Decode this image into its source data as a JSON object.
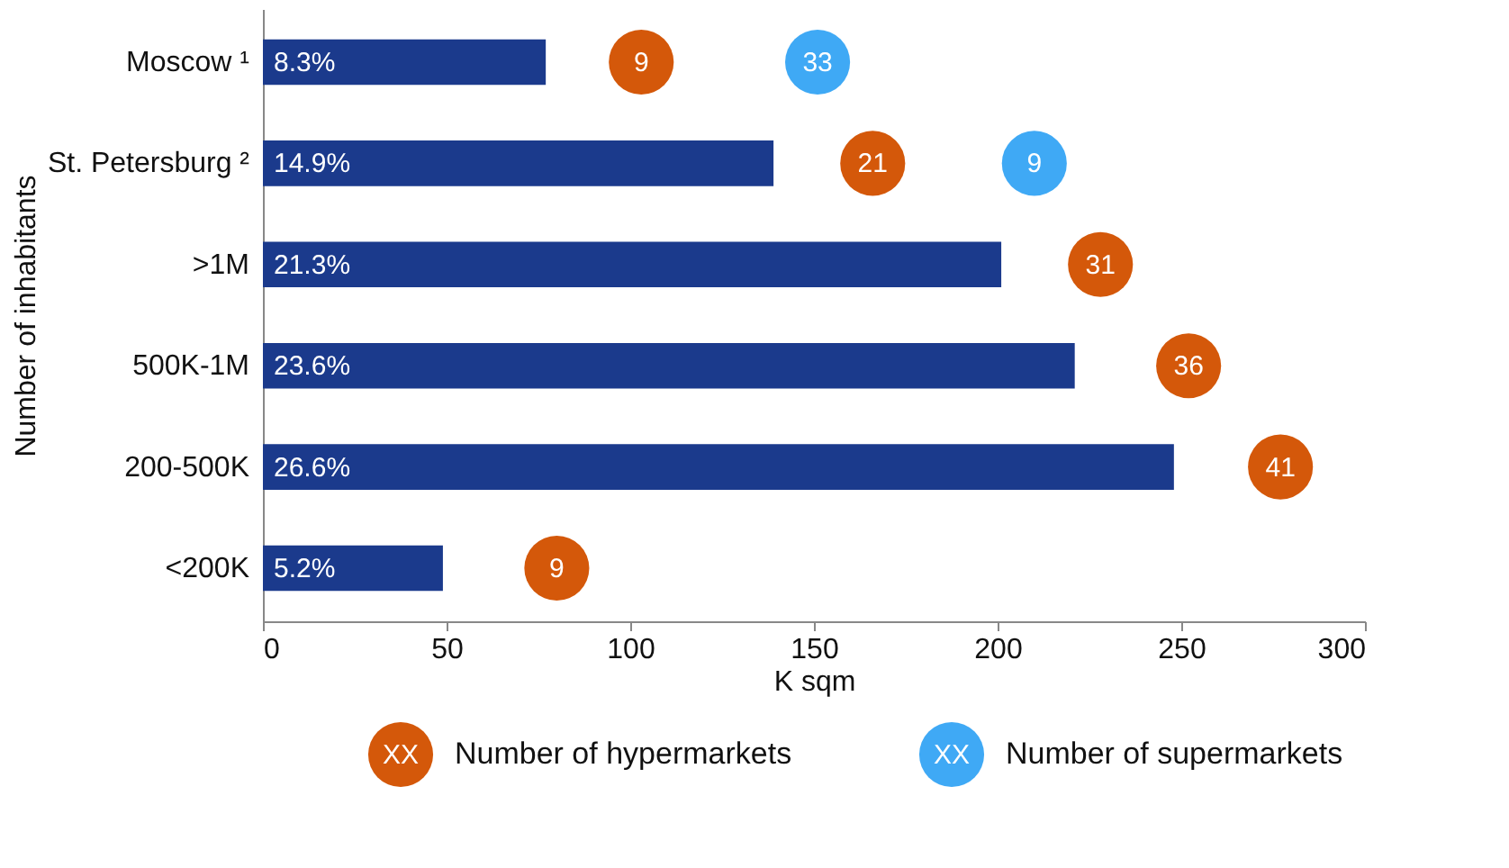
{
  "chart_data": {
    "type": "bar",
    "orientation": "horizontal",
    "categories": [
      "Moscow ¹",
      "St. Petersburg ²",
      ">1M",
      "500K-1M",
      "200-500K",
      "<200K"
    ],
    "xlabel": "K sqm",
    "ylabel": "Number of inhabitants",
    "xlim": [
      0,
      300
    ],
    "xticks": [
      0,
      50,
      100,
      150,
      200,
      250,
      300
    ],
    "grid": false,
    "legend": "bottom",
    "series": [
      {
        "color": "#1b3a8c",
        "values": [
          77,
          139,
          201,
          221,
          248,
          49
        ]
      },
      {
        "type": "scatter",
        "name": "Number of hypermarkets",
        "color": "#d4580a",
        "values": [
          103,
          166,
          228,
          252,
          277,
          80
        ]
      },
      {
        "type": "scatter",
        "name": "Number of supermarkets",
        "color": "#3fa9f5",
        "values": [
          151,
          210,
          null,
          null,
          null,
          null
        ]
      }
    ],
    "annotations": [
      "8.3%",
      "14.9%",
      "21.3%",
      "23.6%",
      "26.6%",
      "5.2%",
      {
        "text": "9",
        "x": 103,
        "y": "Moscow ¹"
      },
      {
        "text": "21",
        "x": 166,
        "y": "St. Petersburg ²"
      },
      {
        "text": "31",
        "x": 228,
        "y": ">1M"
      },
      {
        "text": "36",
        "x": 252,
        "y": "500K-1M"
      },
      {
        "text": "41",
        "x": 277,
        "y": "200-500K"
      },
      {
        "text": "9",
        "x": 80,
        "y": "<200K"
      },
      {
        "text": "33",
        "x": 151,
        "y": "Moscow ¹"
      },
      {
        "text": "9",
        "x": 210,
        "y": "St. Petersburg ²"
      },
      "XX",
      "XX"
    ]
  }
}
